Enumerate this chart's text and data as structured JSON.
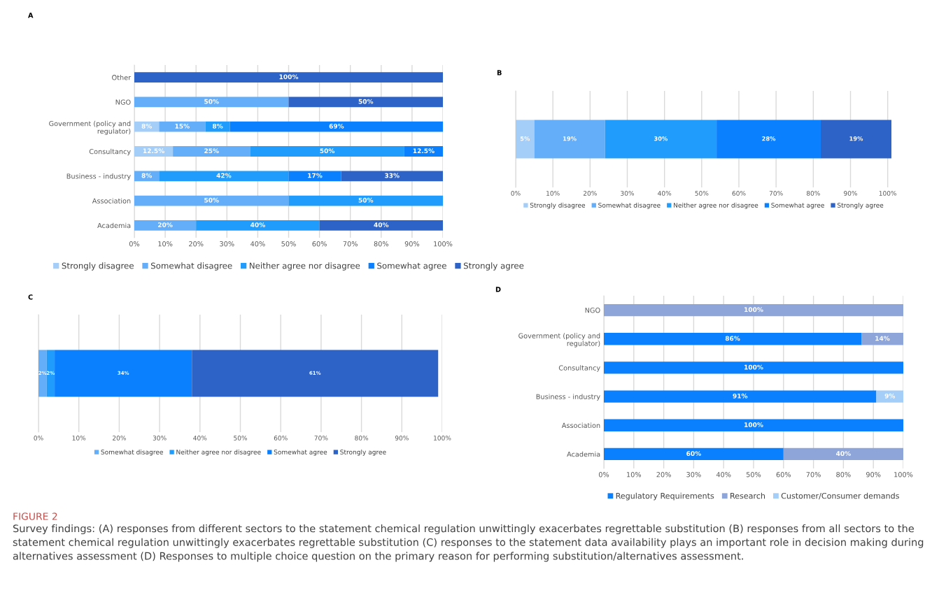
{
  "chart_data": [
    {
      "type": "bar",
      "title": "A",
      "orientation": "horizontal",
      "stacked": true,
      "grid": "x",
      "legend": "bottom",
      "categories": [
        "Other",
        "NGO",
        "Government (policy and regulator)",
        "Consultancy",
        "Business - industry",
        "Association",
        "Academia"
      ],
      "xlim": [
        0,
        100
      ],
      "xticks": [
        {
          "value": 0,
          "label": "0%"
        },
        {
          "value": 10,
          "label": "10%"
        },
        {
          "value": 20,
          "label": "20%"
        },
        {
          "value": 30,
          "label": "30%"
        },
        {
          "value": 40,
          "label": "40%"
        },
        {
          "value": 50,
          "label": "50%"
        },
        {
          "value": 60,
          "label": "60%"
        },
        {
          "value": 70,
          "label": "70%"
        },
        {
          "value": 80,
          "label": "80%"
        },
        {
          "value": 90,
          "label": "90%"
        },
        {
          "value": 100,
          "label": "100%"
        }
      ],
      "series": [
        {
          "name": "Strongly disagree",
          "color": "#a4cdf8",
          "values": [
            null,
            null,
            8,
            12.5,
            null,
            null,
            null
          ],
          "value_labels": [
            null,
            null,
            "8%",
            "12.5%",
            null,
            null,
            null
          ]
        },
        {
          "name": "Somewhat disagree",
          "color": "#64adf8",
          "values": [
            null,
            50,
            15,
            25,
            8,
            50,
            20
          ],
          "value_labels": [
            null,
            "50%",
            "15%",
            "25%",
            "8%",
            "50%",
            "20%"
          ]
        },
        {
          "name": "Neither agree nor disagree",
          "color": "#209cfc",
          "values": [
            null,
            null,
            8,
            50,
            42,
            50,
            40
          ],
          "value_labels": [
            null,
            null,
            "8%",
            "50%",
            "42%",
            "50%",
            "40%"
          ]
        },
        {
          "name": "Somewhat agree",
          "color": "#0a80fe",
          "values": [
            null,
            null,
            69,
            12.5,
            17,
            null,
            null
          ],
          "value_labels": [
            null,
            null,
            "69%",
            "12.5%",
            "17%",
            null,
            null
          ]
        },
        {
          "name": "Strongly agree",
          "color": "#2d62c6",
          "values": [
            100,
            50,
            null,
            null,
            33,
            null,
            40
          ],
          "value_labels": [
            "100%",
            "50%",
            null,
            null,
            "33%",
            null,
            "40%"
          ]
        }
      ]
    },
    {
      "type": "bar",
      "title": "B",
      "orientation": "horizontal",
      "stacked": true,
      "grid": "x",
      "legend": "bottom",
      "categories": [
        null
      ],
      "xlim": [
        0,
        101
      ],
      "xticks": [
        {
          "value": 0,
          "label": "0%"
        },
        {
          "value": 10,
          "label": "10%"
        },
        {
          "value": 20,
          "label": "20%"
        },
        {
          "value": 30,
          "label": "30%"
        },
        {
          "value": 40,
          "label": "40%"
        },
        {
          "value": 50,
          "label": "50%"
        },
        {
          "value": 60,
          "label": "60%"
        },
        {
          "value": 70,
          "label": "70%"
        },
        {
          "value": 80,
          "label": "80%"
        },
        {
          "value": 90,
          "label": "90%"
        },
        {
          "value": 100,
          "label": "100%"
        }
      ],
      "series": [
        {
          "name": "Strongly disagree",
          "color": "#a4cdf8",
          "values": [
            5
          ],
          "value_labels": [
            "5%"
          ]
        },
        {
          "name": "Somewhat disagree",
          "color": "#64adf8",
          "values": [
            19
          ],
          "value_labels": [
            "19%"
          ]
        },
        {
          "name": "Neither agree nor disagree",
          "color": "#209cfc",
          "values": [
            30
          ],
          "value_labels": [
            "30%"
          ]
        },
        {
          "name": "Somewhat agree",
          "color": "#0a80fe",
          "values": [
            28
          ],
          "value_labels": [
            "28%"
          ]
        },
        {
          "name": "Strongly agree",
          "color": "#2d62c6",
          "values": [
            19
          ],
          "value_labels": [
            "19%"
          ]
        }
      ]
    },
    {
      "type": "bar",
      "title": "C",
      "orientation": "horizontal",
      "stacked": true,
      "grid": "x",
      "legend": "bottom",
      "categories": [
        null
      ],
      "xlim": [
        0,
        100
      ],
      "xticks": [
        {
          "value": 0,
          "label": "0%"
        },
        {
          "value": 10,
          "label": "10%"
        },
        {
          "value": 20,
          "label": "20%"
        },
        {
          "value": 30,
          "label": "30%"
        },
        {
          "value": 40,
          "label": "40%"
        },
        {
          "value": 50,
          "label": "50%"
        },
        {
          "value": 60,
          "label": "60%"
        },
        {
          "value": 70,
          "label": "70%"
        },
        {
          "value": 80,
          "label": "80%"
        },
        {
          "value": 90,
          "label": "90%"
        },
        {
          "value": 100,
          "label": "100%"
        }
      ],
      "series": [
        {
          "name": "Somewhat disagree",
          "color": "#64adf8",
          "values": [
            2
          ],
          "value_labels": [
            "2%"
          ]
        },
        {
          "name": "Neither agree nor disagree",
          "color": "#209cfc",
          "values": [
            2
          ],
          "value_labels": [
            "2%"
          ]
        },
        {
          "name": "Somewhat agree",
          "color": "#0a80fe",
          "values": [
            34
          ],
          "value_labels": [
            "34%"
          ]
        },
        {
          "name": "Strongly agree",
          "color": "#2d62c6",
          "values": [
            61
          ],
          "value_labels": [
            "61%"
          ]
        }
      ]
    },
    {
      "type": "bar",
      "title": "D",
      "orientation": "horizontal",
      "stacked": true,
      "grid": "x",
      "legend": "bottom",
      "categories": [
        "NGO",
        "Government (policy and regulator)",
        "Consultancy",
        "Business - industry",
        "Association",
        "Academia"
      ],
      "xlim": [
        0,
        100
      ],
      "xticks": [
        {
          "value": 0,
          "label": "0%"
        },
        {
          "value": 10,
          "label": "10%"
        },
        {
          "value": 20,
          "label": "20%"
        },
        {
          "value": 30,
          "label": "30%"
        },
        {
          "value": 40,
          "label": "40%"
        },
        {
          "value": 50,
          "label": "50%"
        },
        {
          "value": 60,
          "label": "60%"
        },
        {
          "value": 70,
          "label": "70%"
        },
        {
          "value": 80,
          "label": "80%"
        },
        {
          "value": 90,
          "label": "90%"
        },
        {
          "value": 100,
          "label": "100%"
        }
      ],
      "series": [
        {
          "name": "Regulatory Requirements",
          "color": "#0a80fe",
          "values": [
            null,
            86,
            100,
            91,
            100,
            60
          ],
          "value_labels": [
            null,
            "86%",
            "100%",
            "91%",
            "100%",
            "60%"
          ]
        },
        {
          "name": "Research",
          "color": "#8da5d9",
          "values": [
            100,
            14,
            null,
            null,
            null,
            40
          ],
          "value_labels": [
            "100%",
            "14%",
            null,
            null,
            null,
            "40%"
          ]
        },
        {
          "name": "Customer/Consumer demands",
          "color": "#a4cdf8",
          "values": [
            null,
            null,
            null,
            9,
            null,
            null
          ],
          "value_labels": [
            null,
            null,
            null,
            "9%",
            null,
            null
          ]
        }
      ],
      "annotations": [
        "FIGURE 2",
        "Survey findings: (A) responses from different sectors to the statement chemical regulation unwittingly exacerbates regrettable substitution (B) responses from all sectors to the statement chemical regulation unwittingly exacerbates regrettable substitution (C) responses to the statement data availability plays an important role in decision making during alternatives assessment (D) Responses to multiple choice question on the primary reason for performing substitution/alternatives assessment."
      ]
    }
  ]
}
